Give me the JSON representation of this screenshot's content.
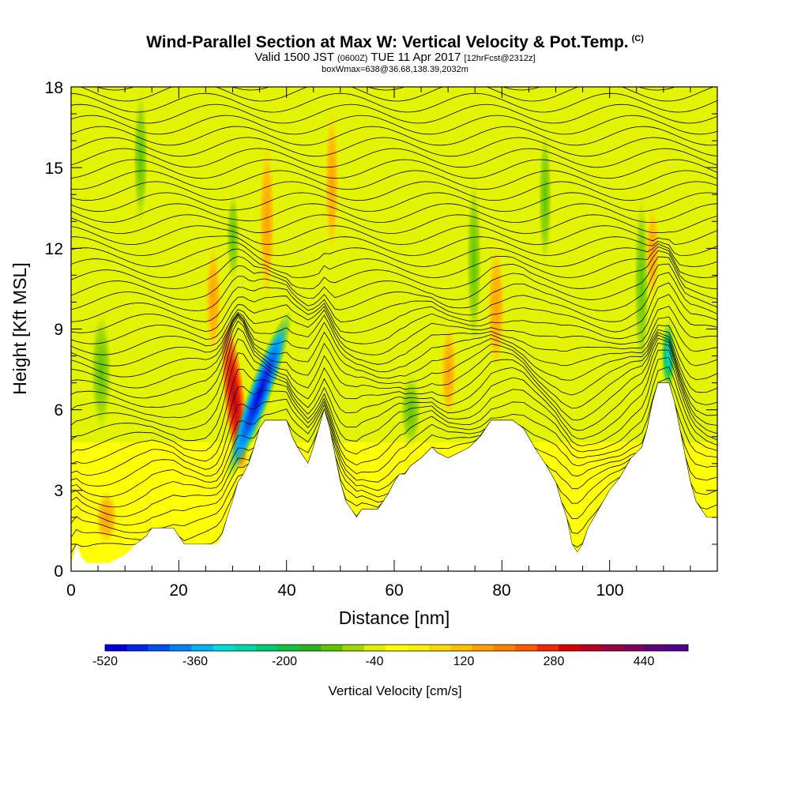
{
  "title": {
    "main": "Wind-Parallel Section at Max W: Vertical Velocity & Pot.Temp.",
    "copyright": "(C)",
    "valid_prefix": "Valid 1500 JST",
    "valid_z": "(0600Z)",
    "valid_date": "TUE 11 Apr 2017",
    "forecast": "[12hrFcst@2312z]",
    "box_info": "boxWmax=638@36.68,138.39,2032m"
  },
  "chart_data": {
    "type": "heatmap",
    "xlabel": "Distance [nm]",
    "ylabel": "Height [Kft MSL]",
    "xlim": [
      0,
      120
    ],
    "ylim": [
      0,
      18
    ],
    "x_ticks": [
      0,
      20,
      40,
      60,
      80,
      100
    ],
    "y_ticks": [
      0,
      3,
      6,
      9,
      12,
      15,
      18
    ],
    "terrain_kft": [
      [
        0,
        0.3
      ],
      [
        1,
        1.0
      ],
      [
        2,
        0.5
      ],
      [
        3,
        0.3
      ],
      [
        5,
        0.3
      ],
      [
        7,
        0.3
      ],
      [
        10,
        0.6
      ],
      [
        12,
        1.0
      ],
      [
        14,
        1.3
      ],
      [
        15,
        1.6
      ],
      [
        19,
        1.6
      ],
      [
        20,
        1.3
      ],
      [
        21,
        1.0
      ],
      [
        27,
        1.0
      ],
      [
        28,
        1.3
      ],
      [
        29,
        2.0
      ],
      [
        30,
        2.6
      ],
      [
        31,
        3.3
      ],
      [
        32,
        3.6
      ],
      [
        33,
        4.0
      ],
      [
        34,
        4.6
      ],
      [
        35,
        5.3
      ],
      [
        36,
        5.6
      ],
      [
        40,
        5.6
      ],
      [
        41,
        5.0
      ],
      [
        42,
        4.6
      ],
      [
        43,
        4.3
      ],
      [
        44,
        4.0
      ],
      [
        45,
        4.6
      ],
      [
        46,
        5.3
      ],
      [
        47,
        6.0
      ],
      [
        48,
        5.3
      ],
      [
        49,
        4.3
      ],
      [
        50,
        3.3
      ],
      [
        51,
        2.6
      ],
      [
        52,
        2.3
      ],
      [
        53,
        2.0
      ],
      [
        54,
        2.3
      ],
      [
        57,
        2.3
      ],
      [
        58,
        2.6
      ],
      [
        59,
        2.9
      ],
      [
        60,
        3.3
      ],
      [
        61,
        3.6
      ],
      [
        62,
        3.6
      ],
      [
        63,
        3.9
      ],
      [
        65,
        4.2
      ],
      [
        67,
        4.6
      ],
      [
        68,
        4.4
      ],
      [
        70,
        4.2
      ],
      [
        72,
        4.4
      ],
      [
        74,
        4.6
      ],
      [
        76,
        5.0
      ],
      [
        78,
        5.6
      ],
      [
        82,
        5.6
      ],
      [
        84,
        5.3
      ],
      [
        86,
        4.6
      ],
      [
        88,
        4.0
      ],
      [
        90,
        3.3
      ],
      [
        91,
        2.6
      ],
      [
        92,
        2.0
      ],
      [
        93,
        1.0
      ],
      [
        94,
        0.7
      ],
      [
        95,
        1.0
      ],
      [
        96,
        1.6
      ],
      [
        98,
        2.3
      ],
      [
        100,
        3.0
      ],
      [
        102,
        3.5
      ],
      [
        104,
        4.2
      ],
      [
        106,
        4.6
      ],
      [
        107,
        5.3
      ],
      [
        108,
        6.3
      ],
      [
        109,
        7.0
      ],
      [
        111,
        7.0
      ],
      [
        112,
        6.3
      ],
      [
        113,
        5.3
      ],
      [
        114,
        4.3
      ],
      [
        115,
        3.3
      ],
      [
        116,
        2.6
      ],
      [
        117,
        2.3
      ],
      [
        118,
        2.0
      ],
      [
        120,
        2.0
      ]
    ],
    "colorbar": {
      "title": "Vertical Velocity [cm/s]",
      "tick_labels": [
        "-520",
        "-360",
        "-200",
        "-40",
        "120",
        "280",
        "440"
      ],
      "bin_width_cm_s": 40,
      "range": [
        -560,
        560
      ],
      "colors": [
        "#0000d8",
        "#0024ec",
        "#0050f0",
        "#0080f4",
        "#00b4f0",
        "#00dcdc",
        "#00d8a8",
        "#00cc70",
        "#14c040",
        "#28b420",
        "#5cc400",
        "#a0d800",
        "#dcf000",
        "#ffff00",
        "#fff000",
        "#ffd800",
        "#ffc000",
        "#ffa000",
        "#ff8000",
        "#ff5800",
        "#f02800",
        "#d80000",
        "#b80020",
        "#980040",
        "#800060",
        "#600080",
        "#500090"
      ]
    }
  }
}
